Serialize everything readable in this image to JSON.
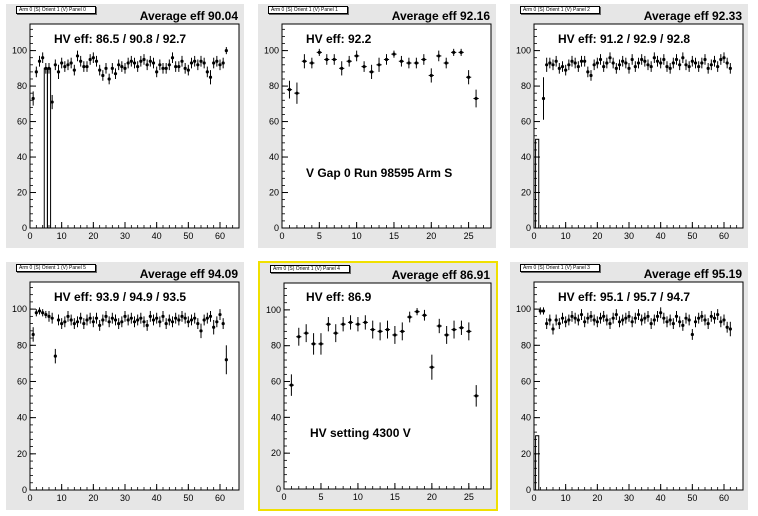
{
  "chart_data": [
    {
      "type": "scatter",
      "panel_tag": "Arm 0 (S) Orient 1 (V) Panel 0",
      "title": "Average eff 90.04",
      "annotation": "HV eff:   86.5 / 90.8 / 92.7",
      "middle_text": "",
      "xlim": [
        0,
        66
      ],
      "ylim": [
        0,
        115
      ],
      "xticks": [
        0,
        10,
        20,
        30,
        40,
        50,
        60
      ],
      "yticks": [
        0,
        20,
        40,
        60,
        80,
        100
      ],
      "x": [
        1,
        2,
        3,
        4,
        5,
        6,
        7,
        8,
        9,
        10,
        11,
        12,
        13,
        14,
        15,
        16,
        17,
        18,
        19,
        20,
        21,
        22,
        23,
        24,
        25,
        26,
        27,
        28,
        29,
        30,
        31,
        32,
        33,
        34,
        35,
        36,
        37,
        38,
        39,
        40,
        41,
        42,
        43,
        44,
        45,
        46,
        47,
        48,
        49,
        50,
        51,
        52,
        53,
        54,
        55,
        56,
        57,
        58,
        59,
        60,
        61,
        62
      ],
      "y": [
        73,
        88,
        94,
        96,
        90,
        90,
        71,
        92,
        88,
        93,
        91,
        92,
        93,
        89,
        97,
        94,
        91,
        91,
        95,
        96,
        94,
        89,
        86,
        90,
        84,
        90,
        87,
        92,
        91,
        90,
        93,
        94,
        93,
        91,
        94,
        95,
        92,
        94,
        93,
        88,
        92,
        90,
        90,
        92,
        96,
        91,
        91,
        94,
        90,
        89,
        93,
        94,
        92,
        94,
        93,
        88,
        85,
        93,
        94,
        92,
        93,
        100
      ],
      "err": [
        4,
        3,
        3,
        3,
        3,
        3,
        4,
        3,
        4,
        3,
        3,
        3,
        3,
        3,
        3,
        3,
        3,
        3,
        3,
        3,
        3,
        3,
        3,
        3,
        3,
        3,
        3,
        3,
        3,
        3,
        3,
        3,
        3,
        3,
        3,
        3,
        3,
        3,
        3,
        3,
        3,
        3,
        3,
        3,
        3,
        3,
        3,
        3,
        3,
        3,
        3,
        3,
        3,
        3,
        3,
        3,
        4,
        3,
        3,
        3,
        3,
        2
      ],
      "hollow": [
        [
          5,
          90
        ],
        [
          6,
          90
        ]
      ]
    },
    {
      "type": "scatter",
      "panel_tag": "Arm 0 (S) Orient 1 (V) Panel 1",
      "title": "Average eff 92.16",
      "annotation": "HV eff:   92.2",
      "middle_text": "V Gap 0 Run 98595 Arm S",
      "xlim": [
        0,
        28
      ],
      "ylim": [
        0,
        115
      ],
      "xticks": [
        0,
        5,
        10,
        15,
        20,
        25
      ],
      "yticks": [
        0,
        20,
        40,
        60,
        80,
        100
      ],
      "x": [
        1,
        2,
        3,
        4,
        5,
        6,
        7,
        8,
        9,
        10,
        11,
        12,
        13,
        14,
        15,
        16,
        17,
        18,
        19,
        20,
        21,
        22,
        23,
        24,
        25,
        26
      ],
      "y": [
        78,
        76,
        94,
        93,
        99,
        95,
        95,
        90,
        94,
        97,
        91,
        88,
        92,
        95,
        98,
        94,
        93,
        93,
        95,
        86,
        97,
        93,
        99,
        99,
        85,
        73
      ],
      "err": [
        5,
        6,
        4,
        3,
        2,
        3,
        3,
        4,
        3,
        3,
        3,
        4,
        4,
        3,
        2,
        3,
        3,
        3,
        3,
        4,
        3,
        3,
        2,
        2,
        4,
        5
      ],
      "hollow": []
    },
    {
      "type": "scatter",
      "panel_tag": "Arm 0 (S) Orient 1 (V) Panel 2",
      "title": "Average eff 92.33",
      "annotation": "HV eff:   91.2 / 92.9 / 92.8",
      "middle_text": "",
      "xlim": [
        0,
        66
      ],
      "ylim": [
        0,
        115
      ],
      "xticks": [
        0,
        10,
        20,
        30,
        40,
        50,
        60
      ],
      "yticks": [
        0,
        20,
        40,
        60,
        80,
        100
      ],
      "x": [
        3,
        4,
        5,
        6,
        7,
        8,
        9,
        10,
        11,
        12,
        13,
        14,
        15,
        16,
        17,
        18,
        19,
        20,
        21,
        22,
        23,
        24,
        25,
        26,
        27,
        28,
        29,
        30,
        31,
        32,
        33,
        34,
        35,
        36,
        37,
        38,
        39,
        40,
        41,
        42,
        43,
        44,
        45,
        46,
        47,
        48,
        49,
        50,
        51,
        52,
        53,
        54,
        55,
        56,
        57,
        58,
        59,
        60,
        61,
        62
      ],
      "y": [
        73,
        92,
        93,
        92,
        94,
        90,
        91,
        89,
        92,
        94,
        93,
        91,
        94,
        94,
        88,
        86,
        92,
        93,
        95,
        91,
        93,
        96,
        93,
        90,
        92,
        94,
        93,
        90,
        95,
        91,
        93,
        95,
        94,
        92,
        91,
        96,
        94,
        93,
        95,
        91,
        90,
        93,
        95,
        92,
        96,
        92,
        91,
        94,
        93,
        91,
        93,
        95,
        90,
        92,
        94,
        91,
        95,
        96,
        93,
        90
      ],
      "err": [
        12,
        4,
        3,
        3,
        3,
        3,
        3,
        3,
        3,
        3,
        3,
        3,
        3,
        3,
        3,
        3,
        3,
        3,
        3,
        3,
        3,
        3,
        3,
        3,
        3,
        3,
        3,
        3,
        3,
        3,
        3,
        3,
        3,
        3,
        3,
        3,
        3,
        3,
        3,
        3,
        3,
        3,
        3,
        3,
        3,
        3,
        3,
        3,
        3,
        3,
        3,
        3,
        3,
        3,
        3,
        3,
        3,
        3,
        3,
        3
      ],
      "hollow": [
        [
          1,
          50
        ]
      ]
    },
    {
      "type": "scatter",
      "panel_tag": "Arm 0 (S) Orient 1 (V) Panel 5",
      "title": "Average eff 94.09",
      "annotation": "HV eff:   93.9 / 94.9 / 93.5",
      "middle_text": "",
      "xlim": [
        0,
        66
      ],
      "ylim": [
        0,
        115
      ],
      "xticks": [
        0,
        10,
        20,
        30,
        40,
        50,
        60
      ],
      "yticks": [
        0,
        20,
        40,
        60,
        80,
        100
      ],
      "x": [
        1,
        2,
        3,
        4,
        5,
        6,
        7,
        8,
        9,
        10,
        11,
        12,
        13,
        14,
        15,
        16,
        17,
        18,
        19,
        20,
        21,
        22,
        23,
        24,
        25,
        26,
        27,
        28,
        29,
        30,
        31,
        32,
        33,
        34,
        35,
        36,
        37,
        38,
        39,
        40,
        41,
        42,
        43,
        44,
        45,
        46,
        47,
        48,
        49,
        50,
        51,
        52,
        53,
        54,
        55,
        56,
        57,
        58,
        59,
        60,
        61,
        62
      ],
      "y": [
        86,
        98,
        99,
        98,
        97,
        96,
        95,
        74,
        94,
        92,
        93,
        96,
        94,
        92,
        93,
        95,
        92,
        94,
        95,
        93,
        95,
        91,
        94,
        96,
        93,
        95,
        94,
        92,
        93,
        96,
        94,
        95,
        93,
        94,
        95,
        93,
        91,
        96,
        94,
        95,
        93,
        96,
        92,
        94,
        93,
        95,
        94,
        96,
        95,
        93,
        94,
        95,
        92,
        88,
        94,
        95,
        96,
        90,
        93,
        97,
        92,
        72
      ],
      "err": [
        4,
        2,
        2,
        2,
        2,
        3,
        3,
        4,
        3,
        3,
        3,
        3,
        3,
        3,
        3,
        3,
        3,
        3,
        3,
        3,
        3,
        3,
        3,
        3,
        3,
        3,
        3,
        3,
        3,
        3,
        3,
        3,
        3,
        3,
        3,
        3,
        3,
        3,
        3,
        3,
        3,
        3,
        3,
        3,
        3,
        3,
        3,
        3,
        3,
        3,
        3,
        3,
        3,
        4,
        3,
        3,
        3,
        4,
        3,
        3,
        3,
        8
      ],
      "hollow": []
    },
    {
      "type": "scatter",
      "panel_tag": "Arm 0 (S) Orient 1 (V) Panel 4",
      "title": "Average eff 86.91",
      "annotation": "HV eff:   86.9",
      "middle_text": "HV setting 4300 V",
      "xlim": [
        0,
        28
      ],
      "ylim": [
        0,
        115
      ],
      "xticks": [
        0,
        5,
        10,
        15,
        20,
        25
      ],
      "yticks": [
        0,
        20,
        40,
        60,
        80,
        100
      ],
      "x": [
        1,
        2,
        3,
        4,
        5,
        6,
        7,
        8,
        9,
        10,
        11,
        12,
        13,
        14,
        15,
        16,
        17,
        18,
        19,
        20,
        21,
        22,
        23,
        24,
        25,
        26
      ],
      "y": [
        58,
        85,
        87,
        81,
        81,
        92,
        87,
        92,
        93,
        92,
        93,
        89,
        88,
        89,
        86,
        88,
        96,
        99,
        97,
        68,
        91,
        86,
        89,
        90,
        88,
        52
      ],
      "err": [
        6,
        5,
        5,
        6,
        6,
        4,
        5,
        4,
        4,
        4,
        4,
        5,
        5,
        5,
        5,
        5,
        3,
        2,
        3,
        7,
        4,
        5,
        5,
        4,
        5,
        6
      ],
      "hollow": []
    },
    {
      "type": "scatter",
      "panel_tag": "Arm 0 (S) Orient 1 (V) Panel 3",
      "title": "Average eff 95.19",
      "annotation": "HV eff:   95.1 / 95.7 / 94.7",
      "middle_text": "",
      "xlim": [
        0,
        66
      ],
      "ylim": [
        0,
        115
      ],
      "xticks": [
        0,
        10,
        20,
        30,
        40,
        50,
        60
      ],
      "yticks": [
        0,
        20,
        40,
        60,
        80,
        100
      ],
      "x": [
        2,
        3,
        4,
        5,
        6,
        7,
        8,
        9,
        10,
        11,
        12,
        13,
        14,
        15,
        16,
        17,
        18,
        19,
        20,
        21,
        22,
        23,
        24,
        25,
        26,
        27,
        28,
        29,
        30,
        31,
        32,
        33,
        34,
        35,
        36,
        37,
        38,
        39,
        40,
        41,
        42,
        43,
        44,
        45,
        46,
        47,
        48,
        49,
        50,
        51,
        52,
        53,
        54,
        55,
        56,
        57,
        58,
        59,
        60,
        61,
        62
      ],
      "y": [
        99,
        99,
        92,
        94,
        89,
        94,
        92,
        95,
        93,
        94,
        96,
        95,
        94,
        97,
        93,
        95,
        96,
        94,
        93,
        95,
        96,
        94,
        92,
        95,
        97,
        93,
        94,
        95,
        96,
        93,
        95,
        97,
        94,
        95,
        96,
        92,
        94,
        96,
        98,
        95,
        93,
        94,
        92,
        96,
        93,
        91,
        95,
        94,
        86,
        93,
        95,
        96,
        94,
        92,
        96,
        95,
        97,
        93,
        94,
        90,
        89
      ],
      "err": [
        2,
        2,
        3,
        3,
        3,
        3,
        3,
        3,
        3,
        3,
        3,
        3,
        3,
        3,
        3,
        3,
        3,
        3,
        3,
        3,
        3,
        3,
        3,
        3,
        3,
        3,
        3,
        3,
        3,
        3,
        3,
        3,
        3,
        3,
        3,
        3,
        3,
        3,
        3,
        3,
        3,
        3,
        3,
        3,
        3,
        3,
        3,
        3,
        3,
        3,
        3,
        3,
        3,
        3,
        3,
        3,
        3,
        3,
        3,
        3,
        4
      ],
      "hollow": [
        [
          1,
          30
        ]
      ]
    }
  ]
}
